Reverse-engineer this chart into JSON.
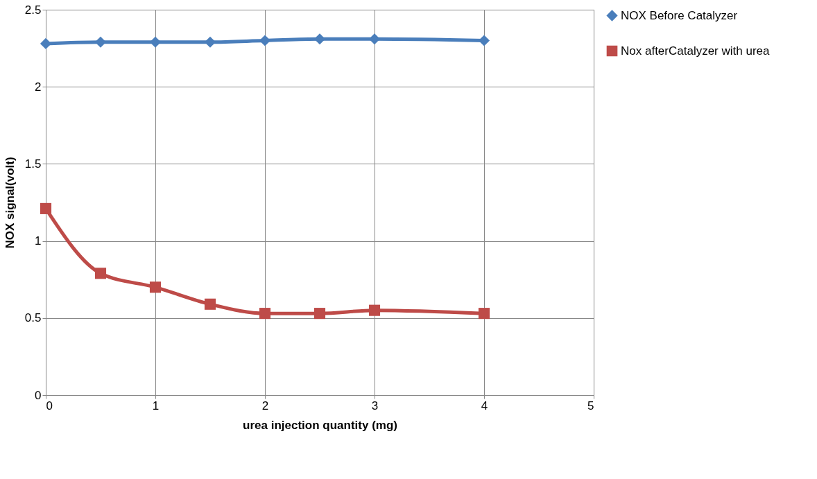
{
  "chart_data": {
    "type": "line",
    "xlabel": "urea injection quantity (mg)",
    "ylabel": "NOX signal(volt)",
    "x": [
      0,
      0.5,
      1,
      1.5,
      2,
      2.5,
      3,
      4
    ],
    "series": [
      {
        "name": "NOX Before Catalyzer",
        "color": "#4a7ebb",
        "marker": "diamond",
        "values": [
          2.28,
          2.29,
          2.29,
          2.29,
          2.3,
          2.31,
          2.31,
          2.3
        ]
      },
      {
        "name": "Nox afterCatalyzer with urea",
        "color": "#be4b48",
        "marker": "square",
        "values": [
          1.21,
          0.79,
          0.7,
          0.59,
          0.53,
          0.53,
          0.55,
          0.53
        ]
      }
    ],
    "xlim": [
      0,
      5
    ],
    "xticks": [
      0,
      1,
      2,
      3,
      4,
      5
    ],
    "ylim": [
      0,
      2.5
    ],
    "yticks": [
      0,
      0.5,
      1,
      1.5,
      2,
      2.5
    ],
    "grid": true,
    "legend": "right",
    "line_style": "solid"
  }
}
